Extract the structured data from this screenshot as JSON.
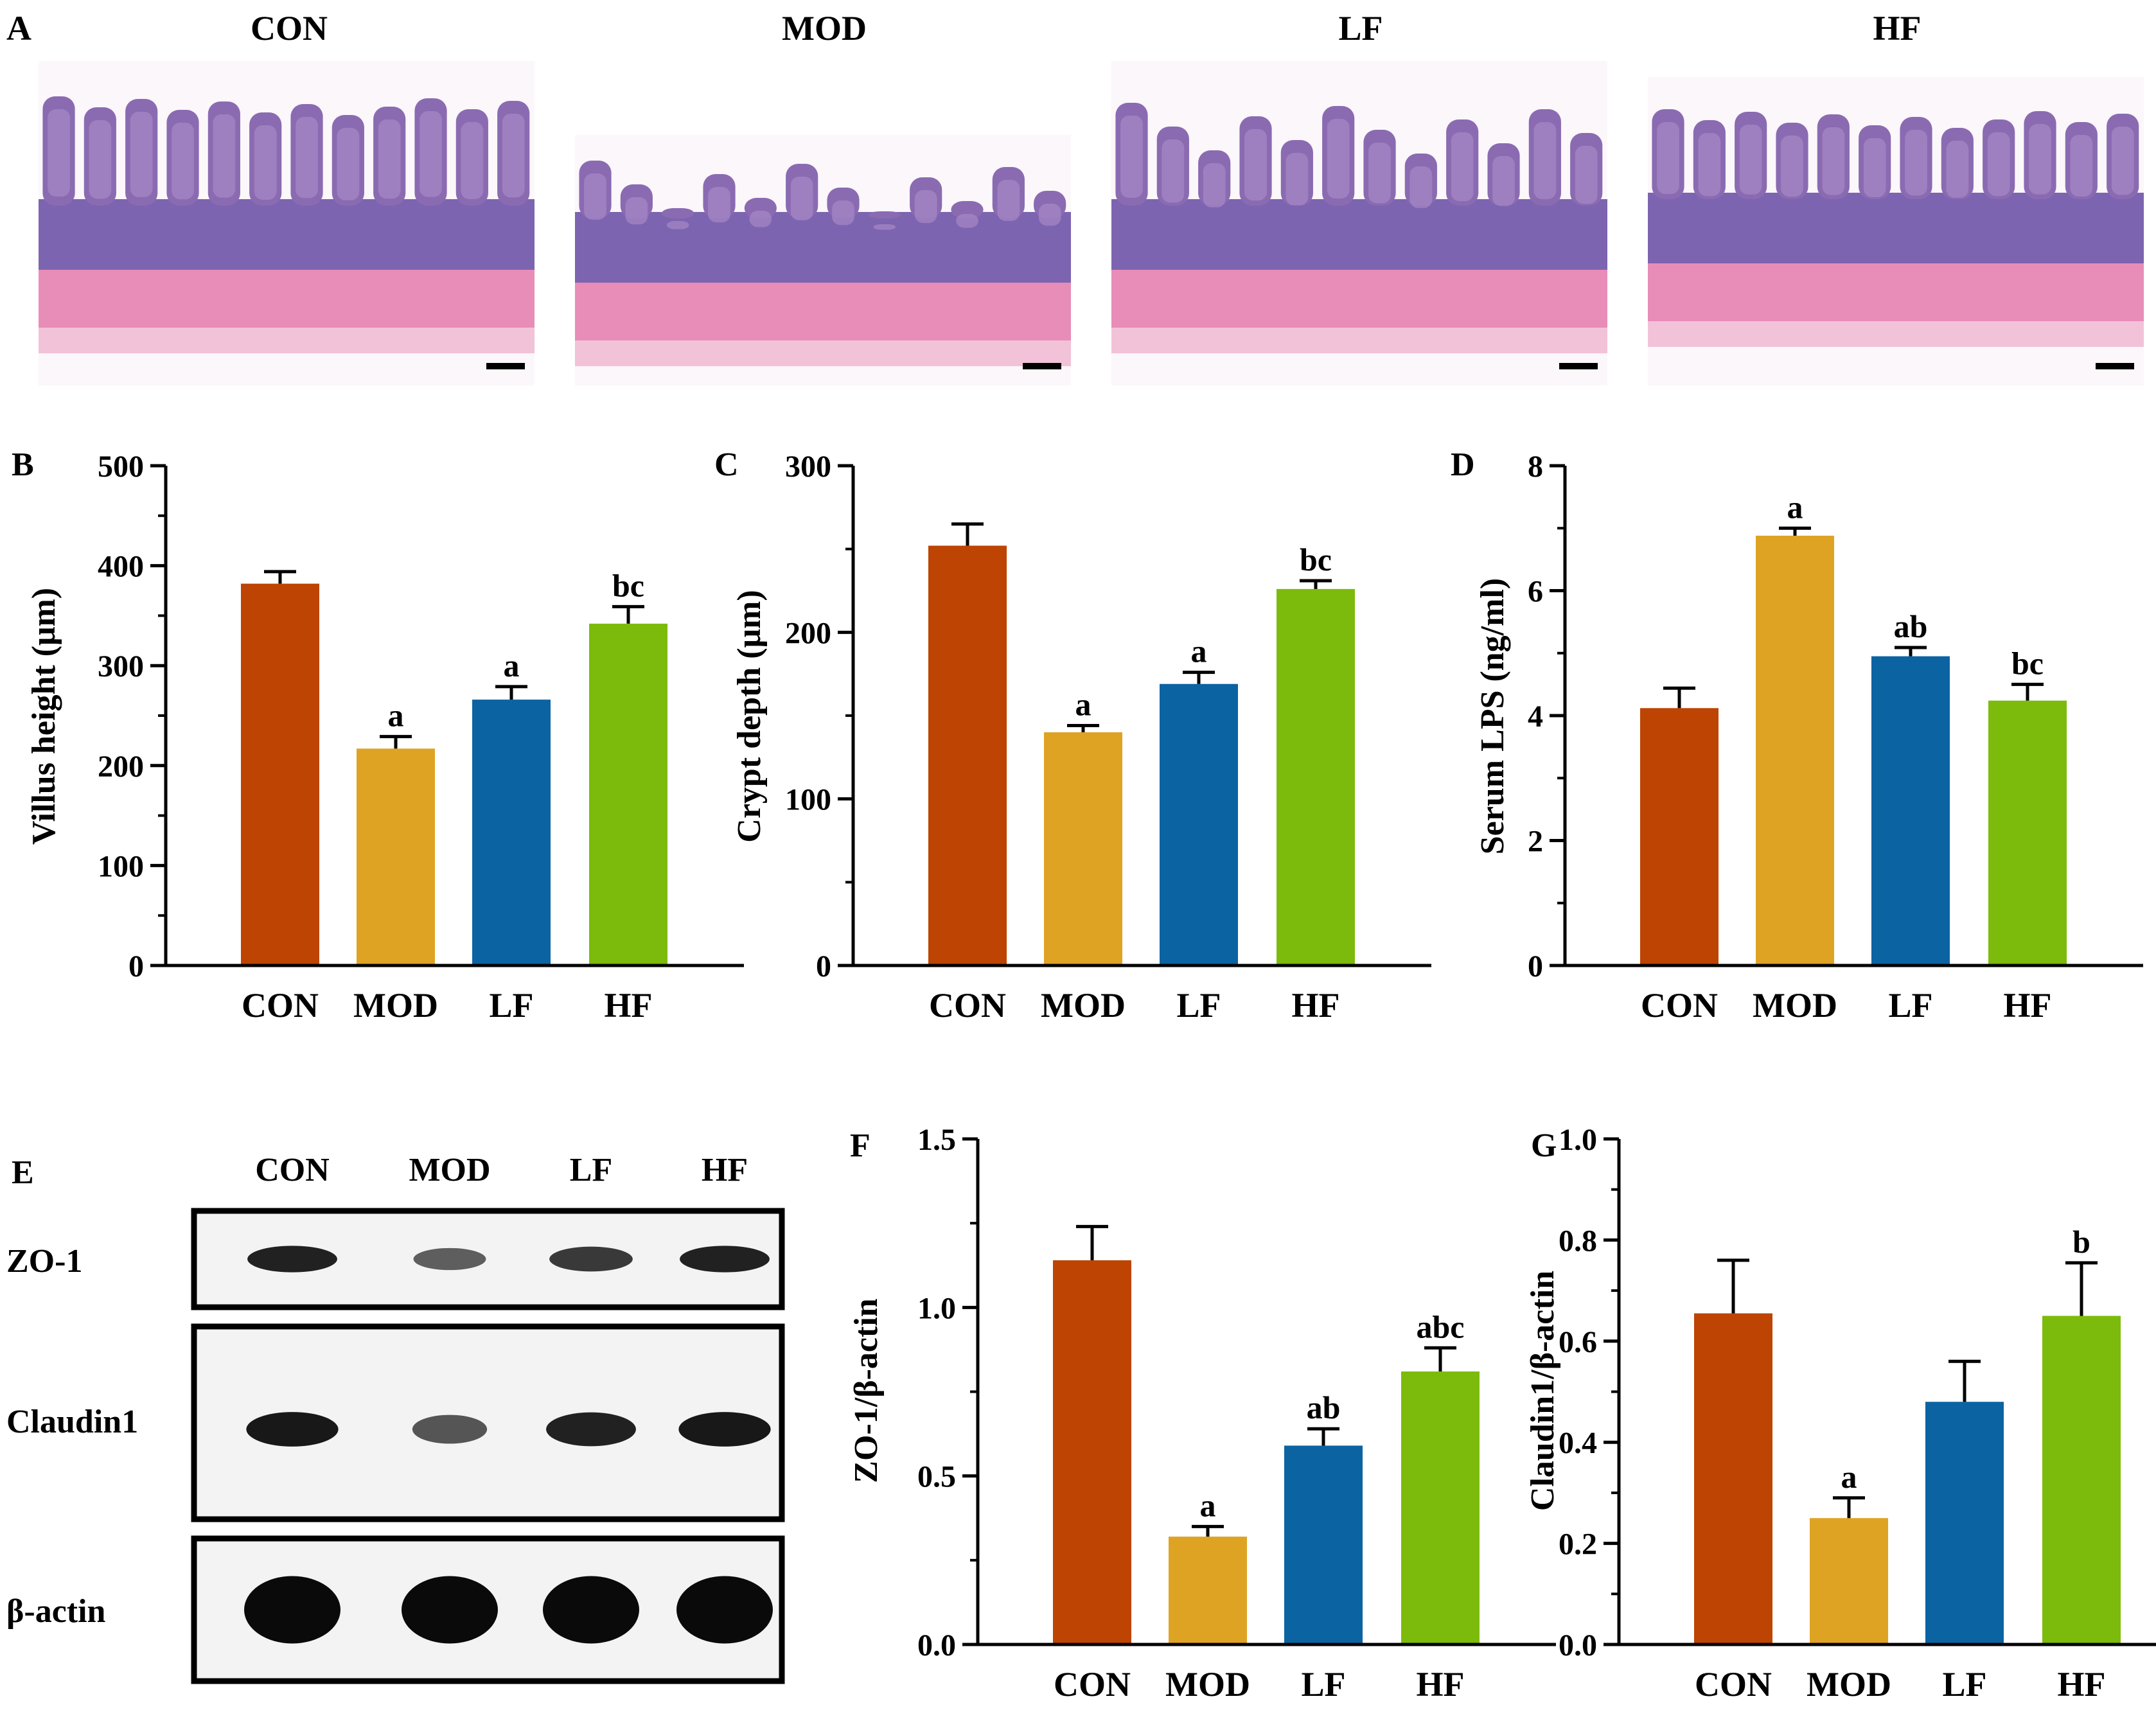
{
  "colors": {
    "CON": "#bd4402",
    "MOD": "#dfa324",
    "LF": "#0b63a2",
    "HF": "#7cbb0b",
    "tissue_bg": "#f4d3e3",
    "villus": "#8a6bb2",
    "muscle": "#e88cb8",
    "band": "#0a0a0a"
  },
  "panels": {
    "A": {
      "letter": "A",
      "images": [
        {
          "label": "CON",
          "icon": "he-stain-micrograph-con"
        },
        {
          "label": "MOD",
          "icon": "he-stain-micrograph-mod"
        },
        {
          "label": "LF",
          "icon": "he-stain-micrograph-lf"
        },
        {
          "label": "HF",
          "icon": "he-stain-micrograph-hf"
        }
      ]
    },
    "E": {
      "letter": "E",
      "lanes": [
        "CON",
        "MOD",
        "LF",
        "HF"
      ],
      "rows": [
        {
          "label": "ZO-1",
          "intensity": [
            0.85,
            0.45,
            0.7,
            0.85
          ]
        },
        {
          "label": "Claudin1",
          "intensity": [
            0.9,
            0.5,
            0.85,
            0.9
          ]
        },
        {
          "label": "β-actin",
          "intensity": [
            1.0,
            1.0,
            1.0,
            1.0
          ]
        }
      ]
    }
  },
  "chart_data": [
    {
      "id": "B",
      "letter": "B",
      "type": "bar",
      "categories": [
        "CON",
        "MOD",
        "LF",
        "HF"
      ],
      "values": [
        382,
        217,
        266,
        342
      ],
      "errors": [
        12,
        12,
        13,
        17
      ],
      "sig_labels": [
        "",
        "a",
        "a",
        "bc"
      ],
      "ylabel": "Villus height (μm)",
      "ylim": [
        0,
        500
      ],
      "yticks": [
        0,
        100,
        200,
        300,
        400,
        500
      ],
      "ytick_labels": [
        "0",
        "100",
        "200",
        "300",
        "400",
        "500"
      ]
    },
    {
      "id": "C",
      "letter": "C",
      "type": "bar",
      "categories": [
        "CON",
        "MOD",
        "LF",
        "HF"
      ],
      "values": [
        252,
        140,
        169,
        226
      ],
      "errors": [
        13,
        4,
        7,
        5
      ],
      "sig_labels": [
        "",
        "a",
        "a",
        "bc"
      ],
      "ylabel": "Crypt depth (μm)",
      "ylim": [
        0,
        300
      ],
      "yticks": [
        0,
        100,
        200,
        300
      ],
      "ytick_labels": [
        "0",
        "100",
        "200",
        "300"
      ]
    },
    {
      "id": "D",
      "letter": "D",
      "type": "bar",
      "categories": [
        "CON",
        "MOD",
        "LF",
        "HF"
      ],
      "values": [
        4.12,
        6.88,
        4.95,
        4.24
      ],
      "errors": [
        0.32,
        0.12,
        0.14,
        0.26
      ],
      "sig_labels": [
        "",
        "a",
        "ab",
        "bc"
      ],
      "ylabel": "Serum LPS (ng/ml)",
      "ylim": [
        0,
        8
      ],
      "yticks": [
        0,
        2,
        4,
        6,
        8
      ],
      "ytick_labels": [
        "0",
        "2",
        "4",
        "6",
        "8"
      ]
    },
    {
      "id": "F",
      "letter": "F",
      "type": "bar",
      "categories": [
        "CON",
        "MOD",
        "LF",
        "HF"
      ],
      "values": [
        1.14,
        0.32,
        0.59,
        0.81
      ],
      "errors": [
        0.1,
        0.03,
        0.05,
        0.07
      ],
      "sig_labels": [
        "",
        "a",
        "ab",
        "abc"
      ],
      "ylabel": "ZO-1/β-actin",
      "ylim": [
        0,
        1.5
      ],
      "yticks": [
        0,
        0.5,
        1.0,
        1.5
      ],
      "ytick_labels": [
        "0.0",
        "0.5",
        "1.0",
        "1.5"
      ]
    },
    {
      "id": "G",
      "letter": "G",
      "type": "bar",
      "categories": [
        "CON",
        "MOD",
        "LF",
        "HF"
      ],
      "values": [
        0.655,
        0.25,
        0.48,
        0.65
      ],
      "errors": [
        0.105,
        0.04,
        0.08,
        0.105
      ],
      "sig_labels": [
        "",
        "a",
        "",
        "b"
      ],
      "ylabel": "Claudin1/β-actin",
      "ylim": [
        0,
        1.0
      ],
      "yticks": [
        0,
        0.2,
        0.4,
        0.6,
        0.8,
        1.0
      ],
      "ytick_labels": [
        "0.0",
        "0.2",
        "0.4",
        "0.6",
        "0.8",
        "1.0"
      ]
    }
  ]
}
